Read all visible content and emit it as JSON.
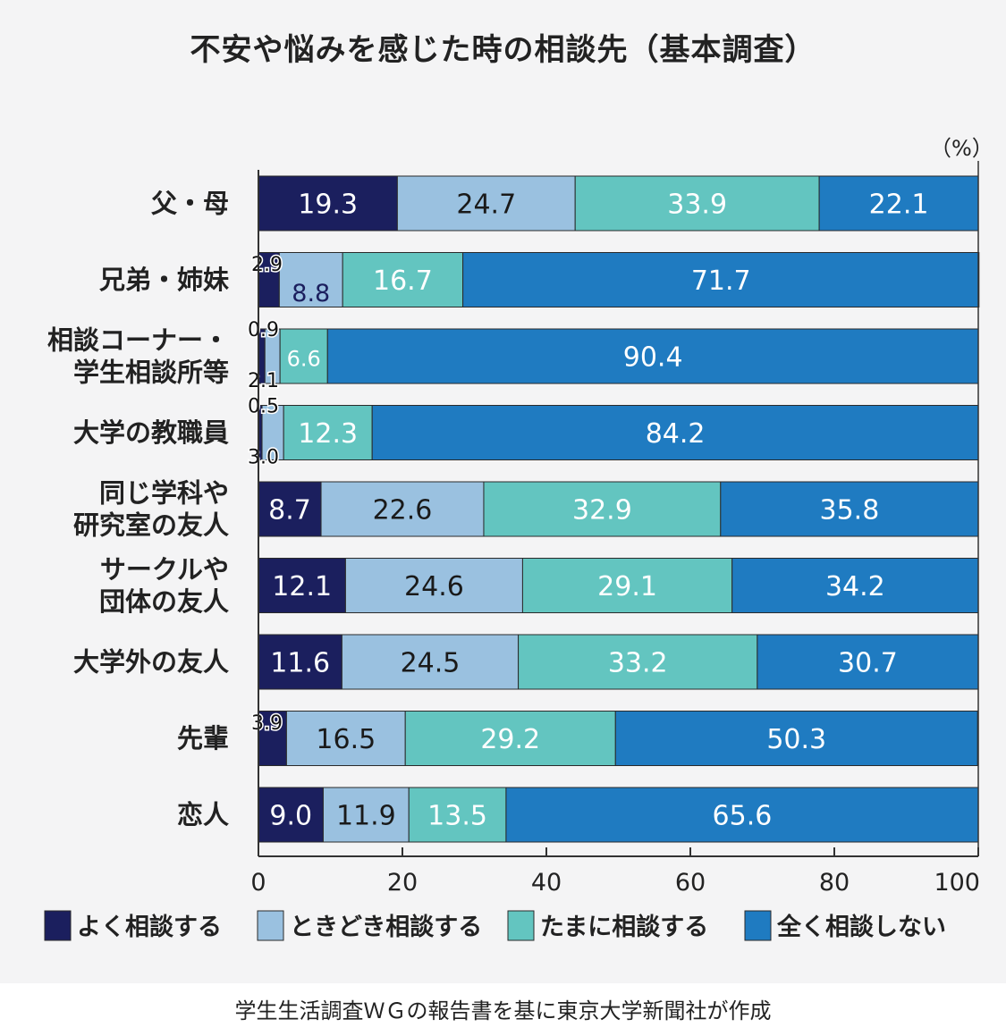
{
  "title": "不安や悩みを感じた時の相談先（基本調査）",
  "unit": "（%）",
  "source": "学生生活調査ＷＧの報告書を基に東京大学新聞社が作成",
  "colors": {
    "series": [
      "#1b1f5e",
      "#9ac1e0",
      "#63c5c0",
      "#1f7bc1"
    ],
    "label_on_dark": "#ffffff",
    "label_on_light": "#1a1a1a",
    "panel_bg": "#f4f4f5",
    "axis": "#333333"
  },
  "chart_data": {
    "type": "bar",
    "orientation": "horizontal",
    "stacked": true,
    "title": "不安や悩みを感じた時の相談先（基本調査）",
    "xlabel": "",
    "ylabel": "",
    "unit": "%",
    "xlim": [
      0,
      100
    ],
    "xticks": [
      0,
      20,
      40,
      60,
      80,
      100
    ],
    "grid": false,
    "legend_position": "bottom",
    "categories": [
      [
        "父・母"
      ],
      [
        "兄弟・姉妹"
      ],
      [
        "相談コーナー・",
        "学生相談所等"
      ],
      [
        "大学の教職員"
      ],
      [
        "同じ学科や",
        "研究室の友人"
      ],
      [
        "サークルや",
        "団体の友人"
      ],
      [
        "大学外の友人"
      ],
      [
        "先輩"
      ],
      [
        "恋人"
      ]
    ],
    "series": [
      {
        "name": "よく相談する",
        "values": [
          19.3,
          2.9,
          0.9,
          0.5,
          8.7,
          12.1,
          11.6,
          3.9,
          9.0
        ]
      },
      {
        "name": "ときどき相談する",
        "values": [
          24.7,
          8.8,
          2.1,
          3.0,
          22.6,
          24.6,
          24.5,
          16.5,
          11.9
        ]
      },
      {
        "name": "たまに相談する",
        "values": [
          33.9,
          16.7,
          6.6,
          12.3,
          32.9,
          29.1,
          33.2,
          29.2,
          13.5
        ]
      },
      {
        "name": "全く相談しない",
        "values": [
          22.1,
          71.7,
          90.4,
          84.2,
          35.8,
          34.2,
          30.7,
          50.3,
          65.6
        ]
      }
    ]
  }
}
